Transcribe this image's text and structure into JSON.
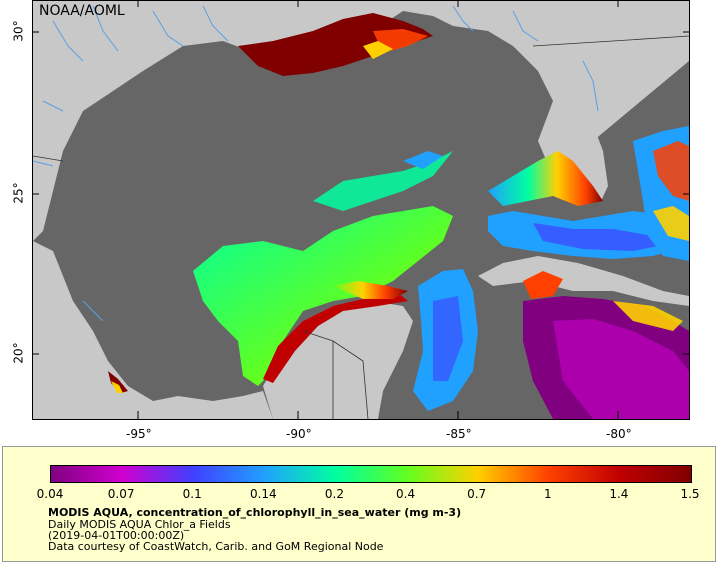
{
  "map": {
    "attribution": "NOAA/AOML",
    "longitude_labels": [
      "-95°",
      "-90°",
      "-85°",
      "-80°"
    ],
    "latitude_labels": [
      "30°",
      "25°",
      "20°"
    ],
    "colors": {
      "ocean_no_data": "#666666",
      "land": "#c8c8c8",
      "rivers": "#5aa0e6",
      "borders": "#333333"
    }
  },
  "legend": {
    "colorbar_ticks": [
      "0.04",
      "0.07",
      "0.1",
      "0.14",
      "0.2",
      "0.4",
      "0.7",
      "1",
      "1.4",
      "1.5"
    ],
    "colormap": [
      "#800080",
      "#d000d0",
      "#4040ff",
      "#20a0ff",
      "#00ffa0",
      "#60ff20",
      "#ffd000",
      "#ff4000",
      "#c00000",
      "#800000"
    ],
    "title": "MODIS AQUA, concentration_of_chlorophyll_in_sea_water (mg m-3)",
    "subtitle": "Daily MODIS AQUA Chlor_a Fields",
    "date": "(2019-04-01T00:00:00Z)",
    "credit": "Data courtesy of CoastWatch, Carib. and GoM Regional Node"
  }
}
